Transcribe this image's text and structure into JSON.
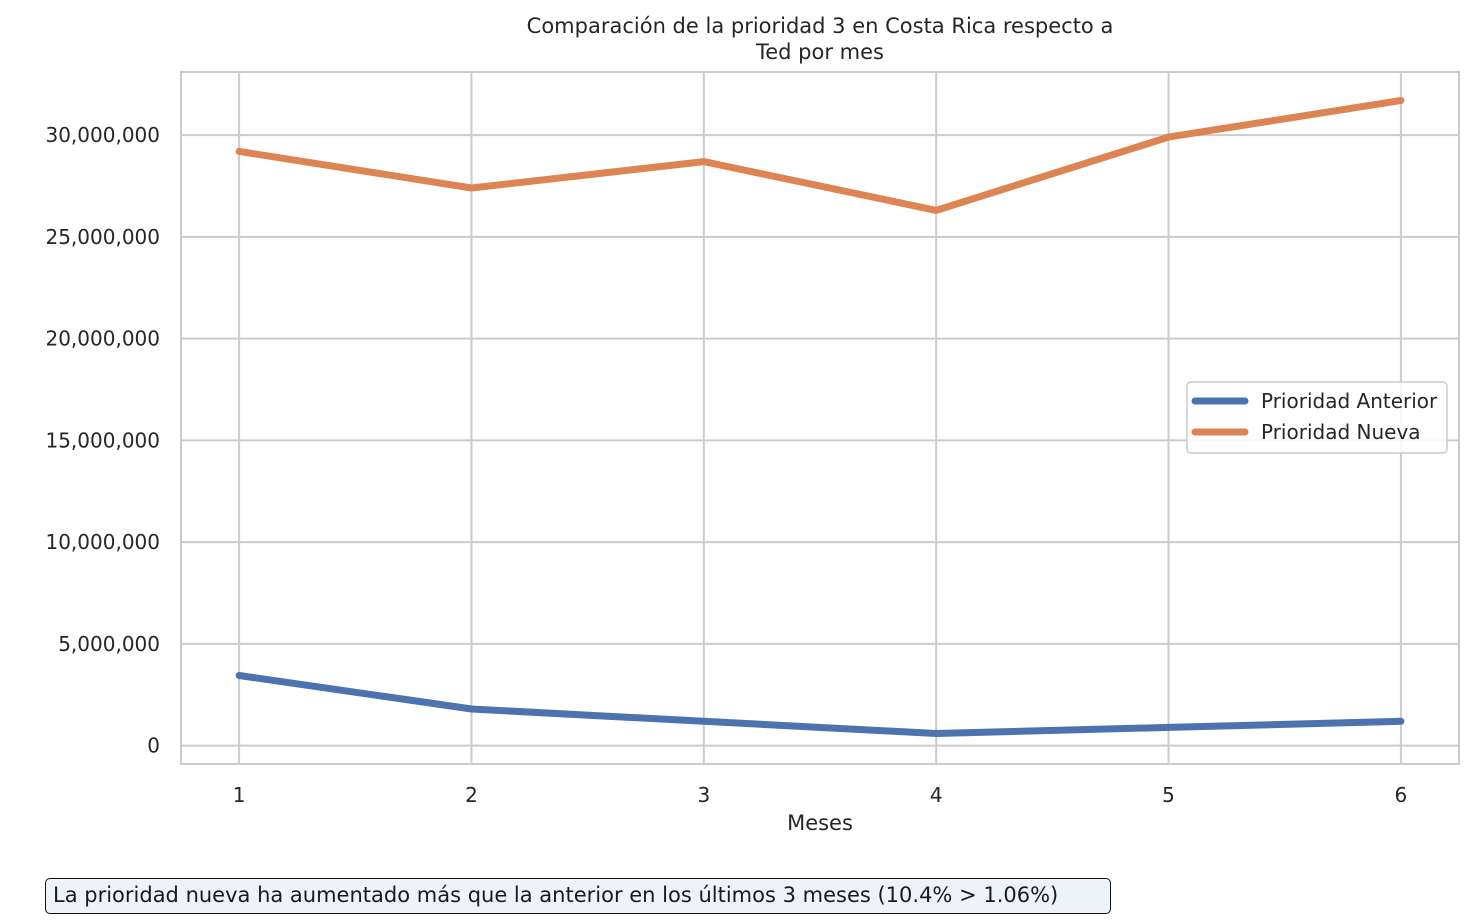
{
  "chart_data": {
    "type": "line",
    "title_lines": [
      "Comparación de la prioridad 3 en Costa Rica respecto a",
      "Ted por mes"
    ],
    "xlabel": "Meses",
    "ylabel": "",
    "x": [
      1,
      2,
      3,
      4,
      5,
      6
    ],
    "xlim": [
      0.75,
      6.25
    ],
    "ylim": [
      -900000,
      33100000
    ],
    "yticks": [
      0,
      5000000,
      10000000,
      15000000,
      20000000,
      25000000,
      30000000
    ],
    "ytick_labels": [
      "0",
      "5,000,000",
      "10,000,000",
      "15,000,000",
      "20,000,000",
      "25,000,000",
      "30,000,000"
    ],
    "xtick_labels": [
      "1",
      "2",
      "3",
      "4",
      "5",
      "6"
    ],
    "grid": true,
    "legend_position": "center-right",
    "series": [
      {
        "name": "Prioridad Anterior",
        "color": "#4c72b0",
        "values": [
          3450000,
          1800000,
          1200000,
          600000,
          900000,
          1200000
        ]
      },
      {
        "name": "Prioridad Nueva",
        "color": "#dd8452",
        "values": [
          29200000,
          27400000,
          28700000,
          26300000,
          29900000,
          31700000
        ]
      }
    ]
  },
  "note": "La prioridad nueva ha aumentado más que la anterior en los últimos 3 meses (10.4% > 1.06%)"
}
